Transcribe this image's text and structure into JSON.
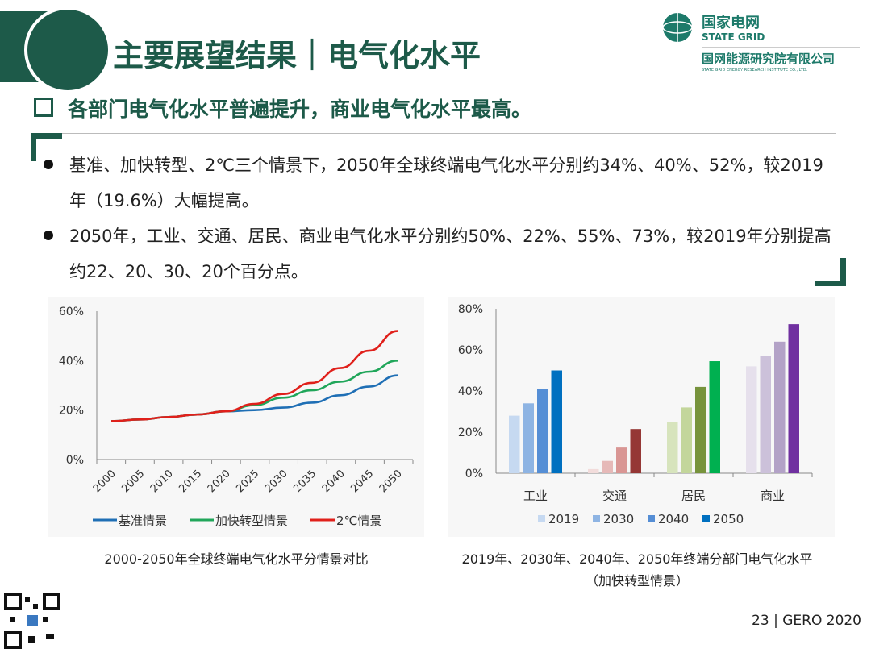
{
  "header": {
    "title": "主要展望结果｜电气化水平",
    "logo_cn": "国家电网",
    "logo_en": "STATE GRID",
    "institute_cn": "国网能源研究院有限公司",
    "institute_en": "STATE GRID ENERGY RESEARCH INSTITUTE CO., LTD."
  },
  "subheading": "各部门电气化水平普遍提升，商业电气化水平最高。",
  "bullets": [
    "基准、加快转型、2℃三个情景下，2050年全球终端电气化水平分别约34%、40%、52%，较2019年（19.6%）大幅提高。",
    "2050年，工业、交通、居民、商业电气化水平分别约50%、22%、55%、73%，较2019年分别提高约22、20、30、20个百分点。"
  ],
  "footer": {
    "page": "23 | GERO 2020"
  },
  "chart_data": [
    {
      "type": "line",
      "title": "2000-2050年全球终端电气化水平分情景对比",
      "x": [
        2000,
        2005,
        2010,
        2015,
        2020,
        2025,
        2030,
        2035,
        2040,
        2045,
        2050
      ],
      "xticks": [
        "2000",
        "2005",
        "2010",
        "2015",
        "2020",
        "2025",
        "2030",
        "2035",
        "2040",
        "2045",
        "2050"
      ],
      "yticks": [
        "0%",
        "20%",
        "40%",
        "60%"
      ],
      "ylim": [
        0,
        60
      ],
      "legend": "bottom",
      "series": [
        {
          "name": "基准情景",
          "color": "#1f6fb5",
          "values": [
            15.5,
            16.2,
            17.2,
            18.2,
            19.5,
            20,
            21,
            23,
            26,
            29.5,
            34
          ]
        },
        {
          "name": "加快转型情景",
          "color": "#20a65a",
          "values": [
            15.5,
            16.2,
            17.2,
            18.2,
            19.5,
            22,
            25,
            28,
            31.5,
            35.5,
            40
          ]
        },
        {
          "name": "2℃情景",
          "color": "#e0201b",
          "values": [
            15.5,
            16.2,
            17.2,
            18.2,
            19.5,
            22.5,
            26.5,
            31,
            37,
            44,
            52
          ]
        }
      ]
    },
    {
      "type": "bar",
      "title": "2019年、2030年、2040年、2050年终端分部门电气化水平",
      "subtitle": "（加快转型情景）",
      "categories": [
        "工业",
        "交通",
        "居民",
        "商业"
      ],
      "yticks": [
        "0%",
        "20%",
        "40%",
        "60%",
        "80%"
      ],
      "ylim": [
        0,
        80
      ],
      "legend": "bottom",
      "series": [
        {
          "name": "2019",
          "values": [
            28,
            2,
            25,
            52
          ]
        },
        {
          "name": "2030",
          "values": [
            34,
            6,
            32,
            57
          ]
        },
        {
          "name": "2040",
          "values": [
            41,
            12.5,
            42,
            64
          ]
        },
        {
          "name": "2050",
          "values": [
            50,
            21.5,
            54.5,
            72.5
          ]
        }
      ],
      "legend_colors": [
        "#c6d9f1",
        "#8eb4e3",
        "#558ed5",
        "#0070c0"
      ],
      "bar_colors": [
        [
          "#c6d9f1",
          "#8eb4e3",
          "#558ed5",
          "#0070c0"
        ],
        [
          "#f2dcdb",
          "#e6b9b8",
          "#d99694",
          "#953735"
        ],
        [
          "#d7e4bd",
          "#c3d69b",
          "#77933c",
          "#00b050"
        ],
        [
          "#e6e0ec",
          "#ccc1da",
          "#b3a2c7",
          "#7030a0"
        ]
      ]
    }
  ]
}
